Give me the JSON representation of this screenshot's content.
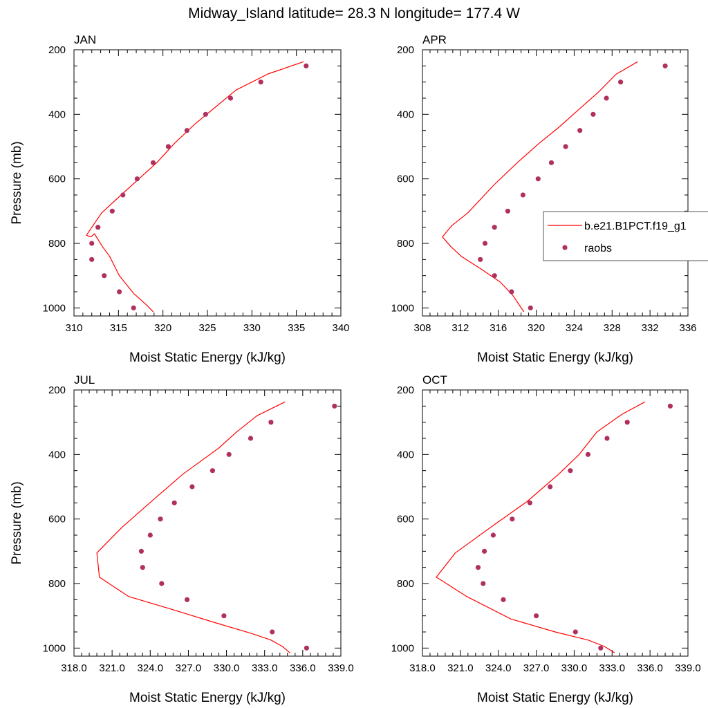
{
  "figure": {
    "title": "Midway_Island  latitude= 28.3 N longitude= 177.4 W"
  },
  "legend": {
    "entries": [
      {
        "label": "b.e21.B1PCT.f19_g1",
        "kind": "line",
        "color": "#ff0000"
      },
      {
        "label": "raobs",
        "kind": "marker",
        "color": "#b03060"
      }
    ]
  },
  "colors": {
    "model": "#ff0000",
    "raobs": "#b03060",
    "axis": "#000000"
  },
  "chart_data": [
    {
      "type": "line",
      "title": "JAN",
      "xlabel": "Moist Static Energy (kJ/kg)",
      "ylabel": "Pressure (mb)",
      "xlim": [
        310,
        340
      ],
      "ylim": [
        1025,
        200
      ],
      "xticks": [
        "310",
        "315",
        "320",
        "325",
        "330",
        "335",
        "340"
      ],
      "yticks": [
        "200",
        "400",
        "600",
        "800",
        "1000"
      ],
      "grid": false,
      "series": [
        {
          "name": "b.e21.B1PCT.f19_g1",
          "style": "line",
          "x": [
            318.9,
            318.2,
            316.7,
            315.1,
            314.0,
            313.2,
            312.3,
            311.9,
            311.4,
            313.1,
            315.3,
            317.3,
            319.3,
            321.3,
            323.6,
            325.8,
            328.2,
            331.8,
            335.8
          ],
          "y": [
            1012,
            992,
            955,
            900,
            840,
            810,
            770,
            780,
            775,
            706,
            650,
            600,
            550,
            490,
            430,
            380,
            325,
            275,
            237
          ]
        },
        {
          "name": "raobs",
          "style": "scatter",
          "x": [
            316.7,
            315.1,
            313.4,
            312.0,
            312.0,
            312.7,
            314.3,
            315.5,
            317.1,
            318.9,
            320.6,
            322.7,
            324.8,
            327.6,
            331.0,
            336.1
          ],
          "y": [
            1000,
            950,
            900,
            850,
            800,
            750,
            700,
            650,
            600,
            550,
            500,
            450,
            400,
            350,
            300,
            250
          ]
        }
      ]
    },
    {
      "type": "line",
      "title": "APR",
      "xlabel": "Moist Static Energy (kJ/kg)",
      "ylabel": "",
      "xlim": [
        308,
        336
      ],
      "ylim": [
        1025,
        200
      ],
      "xticks": [
        "308",
        "312",
        "316",
        "320",
        "324",
        "328",
        "332",
        "336"
      ],
      "yticks": [
        "200",
        "400",
        "600",
        "800",
        "1000"
      ],
      "grid": false,
      "series": [
        {
          "name": "b.e21.B1PCT.f19_g1",
          "style": "line",
          "x": [
            318.7,
            318.3,
            317.5,
            316.2,
            314.2,
            312.1,
            311.0,
            310.1,
            311.1,
            312.8,
            315.5,
            318.0,
            320.3,
            322.4,
            324.3,
            326.6,
            328.4,
            330.7
          ],
          "y": [
            1012,
            995,
            960,
            920,
            880,
            840,
            810,
            780,
            745,
            705,
            620,
            550,
            490,
            440,
            390,
            330,
            276,
            237
          ]
        },
        {
          "name": "raobs",
          "style": "scatter",
          "x": [
            319.4,
            317.4,
            315.6,
            314.1,
            314.6,
            315.6,
            317.0,
            318.6,
            320.2,
            321.6,
            323.1,
            324.6,
            326.0,
            327.4,
            328.9,
            333.6
          ],
          "y": [
            1000,
            950,
            900,
            850,
            800,
            750,
            700,
            650,
            600,
            550,
            500,
            450,
            400,
            350,
            300,
            250
          ]
        }
      ]
    },
    {
      "type": "line",
      "title": "JUL",
      "xlabel": "Moist Static Energy (kJ/kg)",
      "ylabel": "Pressure (mb)",
      "xlim": [
        318,
        339
      ],
      "ylim": [
        1025,
        200
      ],
      "xticks": [
        "318.0",
        "321.0",
        "324.0",
        "327.0",
        "330.0",
        "333.0",
        "336.0",
        "339.0"
      ],
      "yticks": [
        "200",
        "400",
        "600",
        "800",
        "1000"
      ],
      "grid": false,
      "series": [
        {
          "name": "b.e21.B1PCT.f19_g1",
          "style": "line",
          "x": [
            335.0,
            334.4,
            333.5,
            332.0,
            329.0,
            325.7,
            322.3,
            320.0,
            319.8,
            321.8,
            324.4,
            326.6,
            328.0,
            329.4,
            330.8,
            332.4,
            334.6
          ],
          "y": [
            1015,
            995,
            975,
            955,
            920,
            880,
            840,
            780,
            705,
            625,
            535,
            460,
            420,
            380,
            330,
            280,
            237
          ]
        },
        {
          "name": "raobs",
          "style": "scatter",
          "x": [
            336.3,
            333.6,
            329.8,
            326.9,
            324.9,
            323.4,
            323.3,
            324.0,
            324.8,
            325.9,
            327.3,
            328.9,
            330.2,
            331.9,
            333.5,
            338.5
          ],
          "y": [
            1000,
            950,
            900,
            850,
            800,
            750,
            700,
            650,
            600,
            550,
            500,
            450,
            400,
            350,
            300,
            250
          ]
        }
      ]
    },
    {
      "type": "line",
      "title": "OCT",
      "xlabel": "Moist Static Energy (kJ/kg)",
      "ylabel": "",
      "xlim": [
        318,
        339
      ],
      "ylim": [
        1025,
        200
      ],
      "xticks": [
        "318.0",
        "321.0",
        "324.0",
        "327.0",
        "330.0",
        "333.0",
        "336.0",
        "339.0"
      ],
      "yticks": [
        "200",
        "400",
        "600",
        "800",
        "1000"
      ],
      "grid": false,
      "series": [
        {
          "name": "b.e21.B1PCT.f19_g1",
          "style": "line",
          "x": [
            333.2,
            332.4,
            331.1,
            328.5,
            325.0,
            321.5,
            319.1,
            320.6,
            323.6,
            326.3,
            328.8,
            330.4,
            331.8,
            333.8,
            335.6
          ],
          "y": [
            1015,
            995,
            975,
            950,
            910,
            840,
            780,
            705,
            620,
            545,
            460,
            400,
            330,
            275,
            237
          ]
        },
        {
          "name": "raobs",
          "style": "scatter",
          "x": [
            332.1,
            330.1,
            327.0,
            324.4,
            322.8,
            322.4,
            322.9,
            323.6,
            325.1,
            326.5,
            328.1,
            329.7,
            331.1,
            332.6,
            334.2,
            337.6
          ],
          "y": [
            1000,
            950,
            900,
            850,
            800,
            750,
            700,
            650,
            600,
            550,
            500,
            450,
            400,
            350,
            300,
            250
          ]
        }
      ]
    }
  ]
}
